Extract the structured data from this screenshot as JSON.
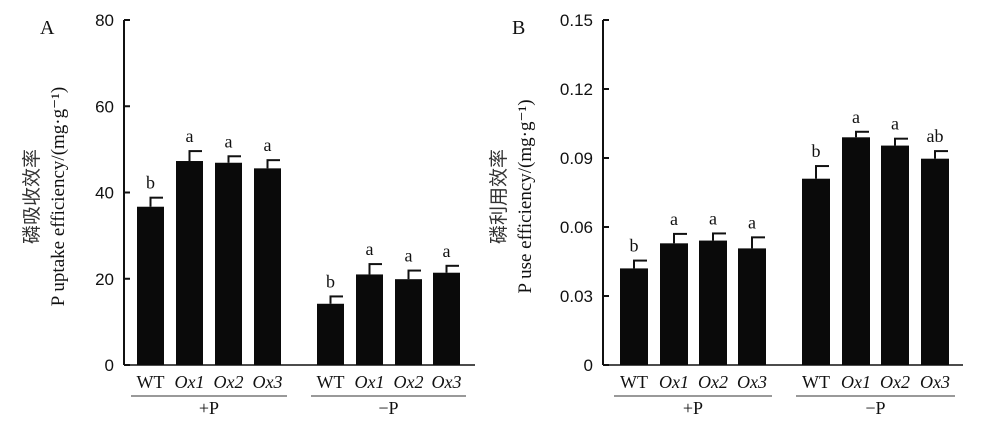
{
  "chart_data": [
    {
      "type": "bar",
      "panel": "A",
      "ylabel_cn": "磷吸收效率",
      "ylabel": "P uptake efficiency/(mg·g⁻¹)",
      "ylim": [
        0,
        80
      ],
      "yticks": [
        "0",
        "20",
        "40",
        "60",
        "80"
      ],
      "ytick_values": [
        0,
        20,
        40,
        60,
        80
      ],
      "groups": [
        {
          "label": "+P",
          "categories": [
            "WT",
            "Ox1",
            "Ox2",
            "Ox3"
          ],
          "values": [
            36.7,
            47.3,
            46.9,
            45.6
          ],
          "errors": [
            2.1,
            2.3,
            1.5,
            1.9
          ],
          "significance": [
            "b",
            "a",
            "a",
            "a"
          ]
        },
        {
          "label": "−P",
          "categories": [
            "WT",
            "Ox1",
            "Ox2",
            "Ox3"
          ],
          "values": [
            14.2,
            21.0,
            19.9,
            21.4
          ],
          "errors": [
            1.7,
            2.4,
            2.0,
            1.6
          ],
          "significance": [
            "b",
            "a",
            "a",
            "a"
          ]
        }
      ],
      "bar_color": "#0a0a0a"
    },
    {
      "type": "bar",
      "panel": "B",
      "ylabel_cn": "磷利用效率",
      "ylabel": "P use efficiency/(mg·g⁻¹)",
      "ylim": [
        0,
        0.15
      ],
      "yticks": [
        "0",
        "0.03",
        "0.06",
        "0.09",
        "0.12",
        "0.15"
      ],
      "ytick_values": [
        0,
        0.03,
        0.06,
        0.09,
        0.12,
        0.15
      ],
      "groups": [
        {
          "label": "+P",
          "categories": [
            "WT",
            "Ox1",
            "Ox2",
            "Ox3"
          ],
          "values": [
            0.042,
            0.0529,
            0.0541,
            0.0507
          ],
          "errors": [
            0.0034,
            0.0041,
            0.0031,
            0.0048
          ],
          "significance": [
            "b",
            "a",
            "a",
            "a"
          ]
        },
        {
          "label": "−P",
          "categories": [
            "WT",
            "Ox1",
            "Ox2",
            "Ox3"
          ],
          "values": [
            0.081,
            0.099,
            0.0954,
            0.0897
          ],
          "errors": [
            0.0055,
            0.0024,
            0.003,
            0.0033
          ],
          "significance": [
            "b",
            "a",
            "a",
            "ab"
          ]
        }
      ],
      "bar_color": "#0a0a0a"
    }
  ]
}
